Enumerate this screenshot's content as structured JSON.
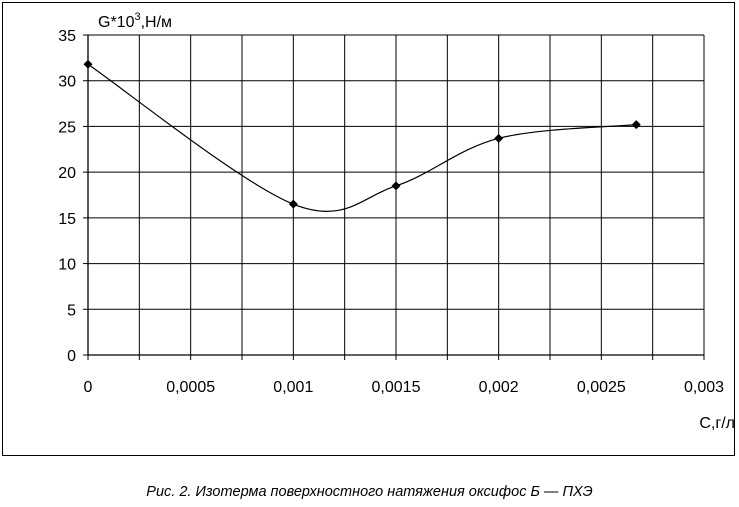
{
  "chart_data": {
    "type": "line",
    "ylabel": "G*10",
    "ylabel_sup": "3",
    "ylabel_unit": ",Н/м",
    "xlabel": "С,г/л",
    "xlim": [
      0,
      0.003
    ],
    "ylim": [
      0,
      35
    ],
    "x_ticks": [
      0,
      0.0005,
      0.001,
      0.0015,
      0.002,
      0.0025,
      0.003
    ],
    "x_tick_labels": [
      "0",
      "0,0005",
      "0,001",
      "0,0015",
      "0,002",
      "0,0025",
      "0,003"
    ],
    "y_ticks": [
      0,
      5,
      10,
      15,
      20,
      25,
      30,
      35
    ],
    "y_tick_labels": [
      "0",
      "5",
      "10",
      "15",
      "20",
      "25",
      "30",
      "35"
    ],
    "grid": true,
    "marker": "diamond",
    "series": [
      {
        "x": [
          0,
          0.001,
          0.0015,
          0.002,
          0.00267
        ],
        "y": [
          31.8,
          16.5,
          18.5,
          23.7,
          25.2
        ]
      }
    ]
  },
  "caption": "Рис. 2. Изотерма поверхностного натяжения оксифос Б — ПХЭ"
}
